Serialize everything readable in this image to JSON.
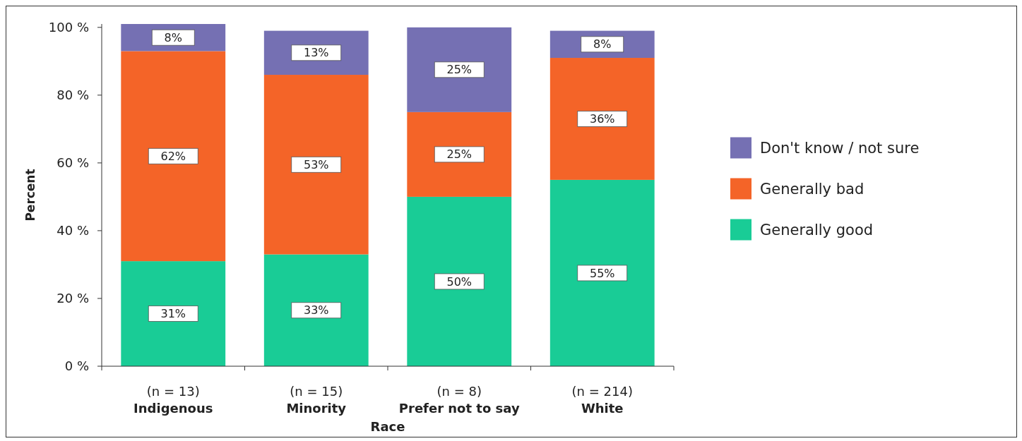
{
  "chart_data": {
    "type": "bar",
    "stacked": true,
    "xlabel": "Race",
    "ylabel": "Percent",
    "categories": [
      "(n = 13)\nIndigenous",
      "(n = 15)\nMinority",
      "(n = 8)\nPrefer not to say",
      "(n = 214)\nWhite"
    ],
    "series": [
      {
        "name": "Generally good",
        "color": "#19cc96",
        "values": [
          31,
          33,
          50,
          55
        ],
        "value_labels": [
          "31%",
          "33%",
          "50%",
          "55%"
        ]
      },
      {
        "name": "Generally bad",
        "color": "#f46428",
        "values": [
          62,
          53,
          25,
          36
        ],
        "value_labels": [
          "62%",
          "53%",
          "25%",
          "36%"
        ]
      },
      {
        "name": "Don't know / not sure",
        "color": "#7570b3",
        "values": [
          8,
          13,
          25,
          8
        ],
        "value_labels": [
          "8%",
          "13%",
          "25%",
          "8%"
        ]
      }
    ],
    "ylim": [
      0,
      101
    ],
    "yticks": [
      {
        "value": 0,
        "label": "0 %"
      },
      {
        "value": 20,
        "label": "20 %"
      },
      {
        "value": 40,
        "label": "40 %"
      },
      {
        "value": 60,
        "label": "60 %"
      },
      {
        "value": 80,
        "label": "80 %"
      },
      {
        "value": 100,
        "label": "100 %"
      }
    ],
    "grid": false,
    "legend": "right"
  }
}
